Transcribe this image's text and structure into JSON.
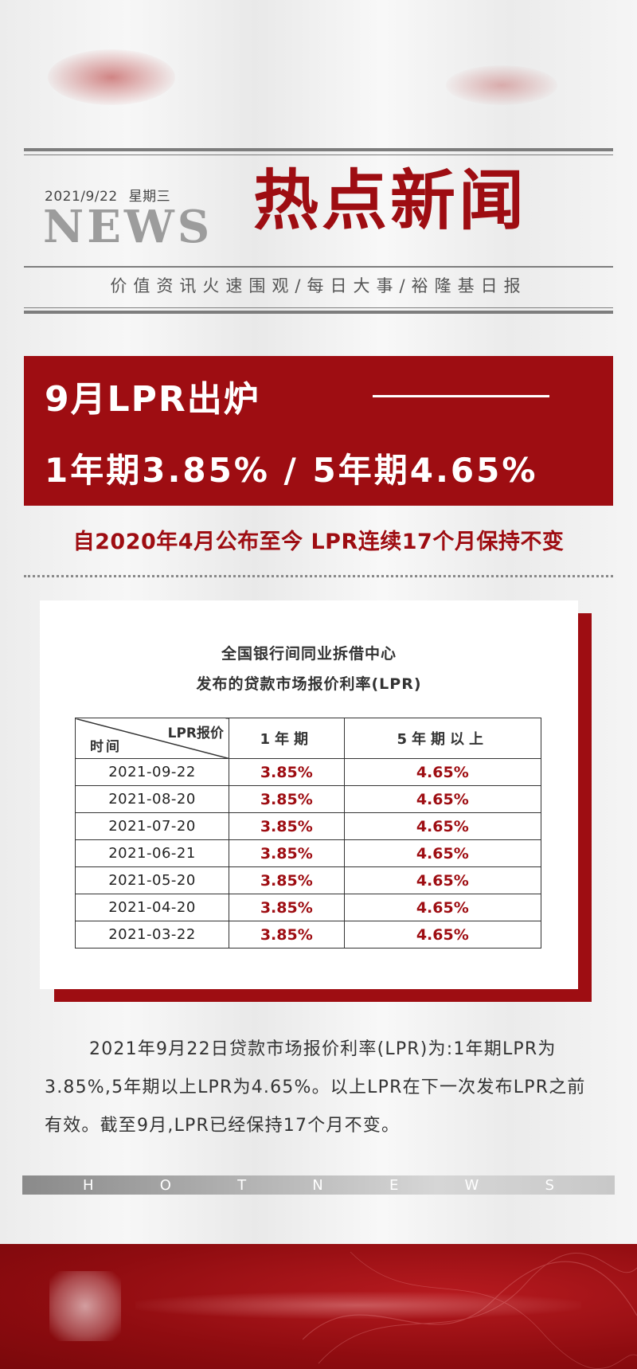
{
  "header": {
    "date": "2021/9/22",
    "weekday": "星期三",
    "news_word": "NEWS",
    "title": "热点新闻",
    "tagline": "价值资讯火速围观/每日大事/裕隆基日报"
  },
  "banner": {
    "line1": "9月LPR出炉",
    "line2": "1年期3.85% / 5年期4.65%"
  },
  "subheadline": "自2020年4月公布至今 LPR连续17个月保持不变",
  "table_card": {
    "title_line1": "全国银行间同业拆借中心",
    "title_line2": "发布的贷款市场报价利率(LPR)",
    "header_top": "LPR报价",
    "header_bottom": "时间",
    "col_1y": "1年期",
    "col_5y": "5年期以上",
    "rows": [
      {
        "date": "2021-09-22",
        "one_year": "3.85%",
        "five_year": "4.65%"
      },
      {
        "date": "2021-08-20",
        "one_year": "3.85%",
        "five_year": "4.65%"
      },
      {
        "date": "2021-07-20",
        "one_year": "3.85%",
        "five_year": "4.65%"
      },
      {
        "date": "2021-06-21",
        "one_year": "3.85%",
        "five_year": "4.65%"
      },
      {
        "date": "2021-05-20",
        "one_year": "3.85%",
        "five_year": "4.65%"
      },
      {
        "date": "2021-04-20",
        "one_year": "3.85%",
        "five_year": "4.65%"
      },
      {
        "date": "2021-03-22",
        "one_year": "3.85%",
        "five_year": "4.65%"
      }
    ]
  },
  "paragraph": "2021年9月22日贷款市场报价利率(LPR)为:1年期LPR为3.85%,5年期以上LPR为4.65%。以上LPR在下一次发布LPR之前有效。截至9月,LPR已经保持17个月不变。",
  "hotnews_letters": [
    "H",
    "O",
    "T",
    "N",
    "E",
    "W",
    "S"
  ],
  "colors": {
    "brand_red": "#9e0d12",
    "news_gray": "#9c9c9c"
  }
}
